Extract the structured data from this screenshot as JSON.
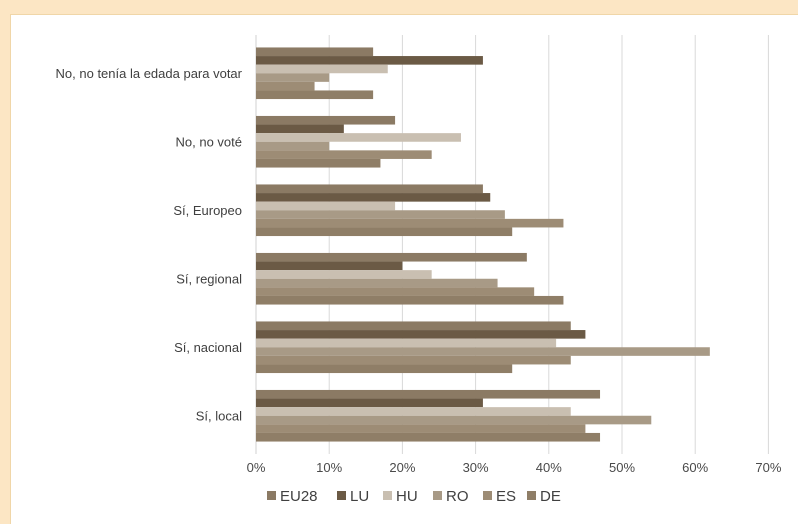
{
  "chart_data": {
    "type": "bar",
    "orientation": "horizontal",
    "categories": [
      "No, no tenía la edada para votar",
      "No, no voté",
      "Sí, Europeo",
      "Sí, regional",
      "Sí, nacional",
      "Sí, local"
    ],
    "series": [
      {
        "name": "EU28",
        "color": "#8b7a64",
        "values": [
          16,
          19,
          31,
          37,
          43,
          47
        ]
      },
      {
        "name": "LU",
        "color": "#6b5a45",
        "values": [
          31,
          12,
          32,
          20,
          45,
          31
        ]
      },
      {
        "name": "HU",
        "color": "#c9bfb1",
        "values": [
          18,
          28,
          19,
          24,
          41,
          43
        ]
      },
      {
        "name": "RO",
        "color": "#a89a86",
        "values": [
          10,
          10,
          34,
          33,
          62,
          54
        ]
      },
      {
        "name": "ES",
        "color": "#9d8c75",
        "values": [
          8,
          24,
          42,
          38,
          43,
          45
        ]
      },
      {
        "name": "DE",
        "color": "#8f7e67",
        "values": [
          16,
          17,
          35,
          42,
          35,
          47
        ]
      }
    ],
    "xlim": [
      0,
      70
    ],
    "x_ticks": [
      "0%",
      "10%",
      "20%",
      "30%",
      "40%",
      "50%",
      "60%",
      "70%"
    ],
    "grid": true,
    "legend_position": "bottom",
    "title": "",
    "xlabel": "",
    "ylabel": ""
  }
}
